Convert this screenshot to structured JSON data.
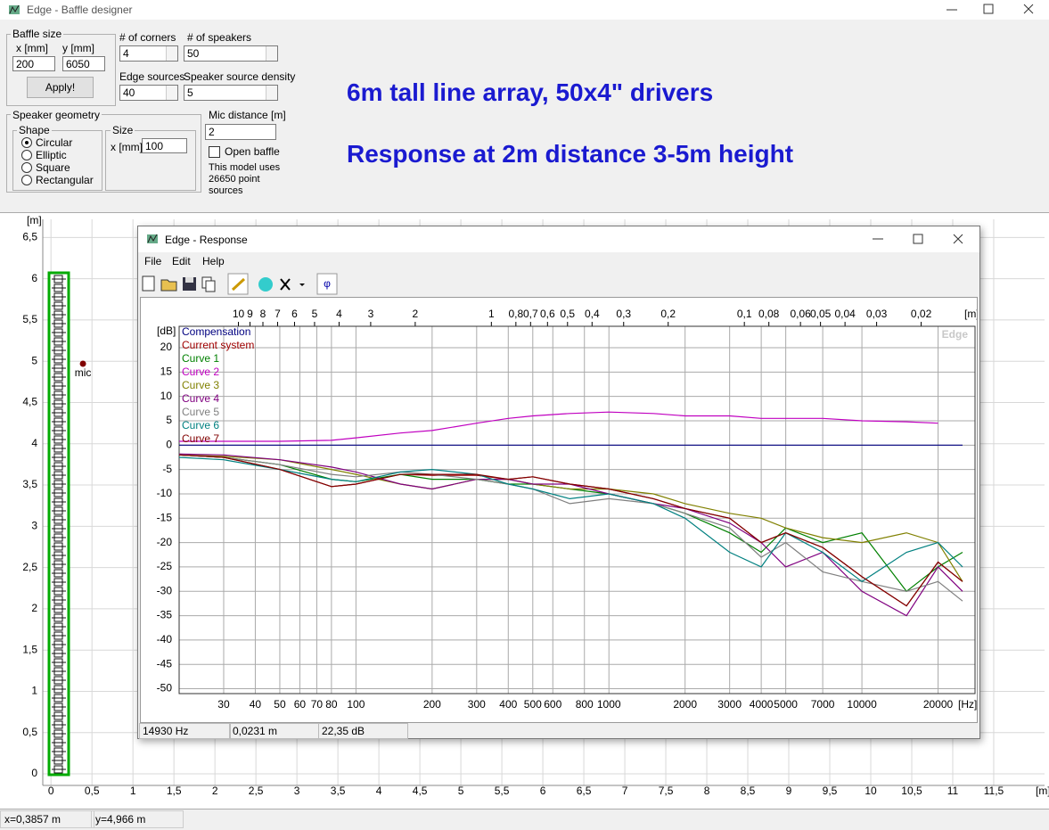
{
  "main_window": {
    "title": "Edge - Baffle designer"
  },
  "controls": {
    "baffle_size": {
      "label": "Baffle size",
      "x_label": "x [mm]",
      "y_label": "y [mm]",
      "x": "200",
      "y": "6050",
      "apply": "Apply!"
    },
    "corners": {
      "label": "# of corners",
      "value": "4"
    },
    "speakers": {
      "label": "# of speakers",
      "value": "50"
    },
    "edge_sources": {
      "label": "Edge sources",
      "value": "40"
    },
    "density": {
      "label": "Speaker source density",
      "value": "5"
    },
    "geometry": {
      "label": "Speaker geometry",
      "shape_label": "Shape",
      "shapes": [
        "Circular",
        "Elliptic",
        "Square",
        "Rectangular"
      ],
      "selected": 0,
      "size_label": "Size",
      "size_x_label": "x [mm]",
      "size_x": "100"
    },
    "mic_distance": {
      "label": "Mic distance [m]",
      "value": "2"
    },
    "open_baffle": "Open baffle",
    "model_note": "This model uses 26650 point sources"
  },
  "annotations": [
    "6m tall line array, 50x4\" drivers",
    "Response at 2m distance 3-5m height"
  ],
  "baffle_plot": {
    "type": "scatter",
    "xlabel": "[m]",
    "ylabel": "[m]",
    "xlim": [
      -0.1,
      12.12
    ],
    "ylim": [
      -0.14,
      6.72
    ],
    "xticks": [
      0,
      {
        "value": 0.5,
        "label": "0,5"
      },
      1,
      {
        "value": 1.5,
        "label": "1,5"
      },
      2,
      {
        "value": 2.5,
        "label": "2,5"
      },
      3,
      {
        "value": 3.5,
        "label": "3,5"
      },
      4,
      {
        "value": 4.5,
        "label": "4,5"
      },
      5,
      {
        "value": 5.5,
        "label": "5,5"
      },
      6,
      {
        "value": 6.5,
        "label": "6,5"
      },
      7,
      {
        "value": 7.5,
        "label": "7,5"
      },
      8,
      {
        "value": 8.5,
        "label": "8,5"
      },
      9,
      {
        "value": 9.5,
        "label": "9,5"
      },
      10,
      {
        "value": 10.5,
        "label": "10,5"
      },
      11,
      {
        "value": 11.5,
        "label": "11,5"
      }
    ],
    "yticks": [
      0,
      {
        "value": 0.5,
        "label": "0,5"
      },
      1,
      {
        "value": 1.5,
        "label": "1,5"
      },
      2,
      {
        "value": 2.5,
        "label": "2,5"
      },
      3,
      {
        "value": 3.5,
        "label": "3,5"
      },
      4,
      {
        "value": 4.5,
        "label": "4,5"
      },
      5,
      {
        "value": 5.5,
        "label": "5,5"
      },
      6,
      {
        "value": 6.5,
        "label": "6,5"
      }
    ],
    "mic": {
      "x": 0.39,
      "y": 4.97,
      "label": "mic",
      "color": "#800000"
    },
    "grid": true
  },
  "response_window": {
    "title": "Edge - Response",
    "menu": [
      "File",
      "Edit",
      "Help"
    ],
    "chart": {
      "type": "line",
      "x_scale": "log",
      "xlabel": "[Hz]",
      "ylabel": "[dB]",
      "x2label": "[m]",
      "watermark": "Edge",
      "grid": true,
      "xlim": [
        20,
        28000
      ],
      "ylim": [
        -51,
        24.4
      ],
      "x2lim": [
        17.15,
        0.01225
      ],
      "xticks": [
        30,
        40,
        50,
        60,
        70,
        80,
        100,
        200,
        300,
        400,
        500,
        600,
        800,
        1000,
        2000,
        3000,
        4000,
        5000,
        7000,
        10000,
        20000
      ],
      "yticks": [
        20,
        15,
        10,
        5,
        0,
        -5,
        -10,
        -15,
        -20,
        -25,
        -30,
        -35,
        -40,
        -45,
        -50
      ],
      "x2ticks": [
        10,
        9,
        8,
        7,
        6,
        5,
        4,
        3,
        2,
        1,
        {
          "value": 0.8,
          "label": "0,8"
        },
        {
          "value": 0.7,
          "label": "0,7"
        },
        {
          "value": 0.6,
          "label": "0,6"
        },
        {
          "value": 0.5,
          "label": "0,5"
        },
        {
          "value": 0.4,
          "label": "0,4"
        },
        {
          "value": 0.3,
          "label": "0,3"
        },
        {
          "value": 0.2,
          "label": "0,2"
        },
        {
          "value": 0.1,
          "label": "0,1"
        },
        {
          "value": 0.08,
          "label": "0,08"
        },
        {
          "value": 0.06,
          "label": "0,06"
        },
        {
          "value": 0.05,
          "label": "0,05"
        },
        {
          "value": 0.04,
          "label": "0,04"
        },
        {
          "value": 0.03,
          "label": "0,03"
        },
        {
          "value": 0.02,
          "label": "0,02"
        }
      ],
      "x": [
        20,
        30,
        50,
        80,
        100,
        150,
        200,
        300,
        400,
        500,
        700,
        1000,
        1500,
        2000,
        3000,
        4000,
        5000,
        7000,
        10000,
        15000,
        20000,
        25000
      ],
      "series": [
        {
          "name": "Compensation",
          "color": "#000080",
          "values": [
            0,
            0,
            0,
            0,
            0,
            0,
            0,
            0,
            0,
            0,
            0,
            0,
            0,
            0,
            0,
            0,
            0,
            0,
            0,
            0,
            0,
            0
          ]
        },
        {
          "name": "Current system",
          "color": "#a00000",
          "values": [
            -2,
            -2.5,
            -5,
            -8.5,
            -8,
            -6,
            -6.2,
            -6.2,
            -7,
            -6.5,
            -8,
            -9,
            -11,
            -13,
            -15,
            -20,
            -18,
            -21,
            -27,
            -33,
            -24,
            -28
          ]
        },
        {
          "name": "Curve 1",
          "color": "#008000",
          "values": [
            -2,
            -2.5,
            -4,
            -7,
            -7.5,
            -6,
            -7,
            -7,
            -8,
            -8,
            -9,
            -10,
            -12,
            -14,
            -18,
            -22,
            -17,
            -20,
            -18,
            -30,
            -25,
            -22
          ]
        },
        {
          "name": "Curve 2",
          "color": "#c000c0",
          "values": [
            0.8,
            0.8,
            0.8,
            1,
            1.5,
            2.5,
            3,
            4.5,
            5.5,
            6,
            6.5,
            6.8,
            6.5,
            6,
            6,
            5.5,
            5.5,
            5.5,
            5,
            4.8,
            4.5,
            null
          ]
        },
        {
          "name": "Curve 3",
          "color": "#808000",
          "values": [
            -2,
            -2.3,
            -3,
            -5,
            -6,
            -8,
            -9,
            -7,
            -7,
            -8,
            -9,
            -9,
            -10,
            -12,
            -14,
            -15,
            -17,
            -19,
            -20,
            -18,
            -20,
            -28
          ]
        },
        {
          "name": "Curve 4",
          "color": "#800080",
          "values": [
            -1.8,
            -2,
            -3,
            -4.5,
            -5.5,
            -8,
            -9,
            -7,
            -7,
            -8,
            -8,
            -10,
            -12,
            -13,
            -16,
            -20,
            -25,
            -22,
            -30,
            -35,
            -25,
            -30
          ]
        },
        {
          "name": "Curve 5",
          "color": "#808080",
          "values": [
            -2,
            -2.5,
            -4,
            -6,
            -6.5,
            -5.5,
            -6,
            -7,
            -8,
            -9,
            -12,
            -11,
            -12,
            -14,
            -17,
            -23,
            -20,
            -26,
            -28,
            -30,
            -28,
            -32
          ]
        },
        {
          "name": "Curve 6",
          "color": "#008080",
          "values": [
            -2.5,
            -3,
            -5,
            -7,
            -7.5,
            -5.5,
            -5,
            -6,
            -8,
            -9,
            -11,
            -10,
            -12,
            -15,
            -22,
            -25,
            -18,
            -22,
            -28,
            -22,
            -20,
            -25
          ]
        },
        {
          "name": "Curve 7",
          "color": "#800000",
          "values": [
            -2,
            -2.5,
            -5,
            -8.5,
            -8,
            -6,
            -6,
            -6,
            -7,
            -6.5,
            -8,
            -9,
            -11,
            -13,
            -15,
            -20,
            -18,
            -21,
            -27,
            -33,
            -24,
            -28
          ]
        }
      ]
    },
    "status": [
      "14930 Hz",
      "0,0231 m",
      "22,35 dB"
    ]
  },
  "status_bar": [
    "x=0,3857 m",
    "y=4,966 m"
  ]
}
